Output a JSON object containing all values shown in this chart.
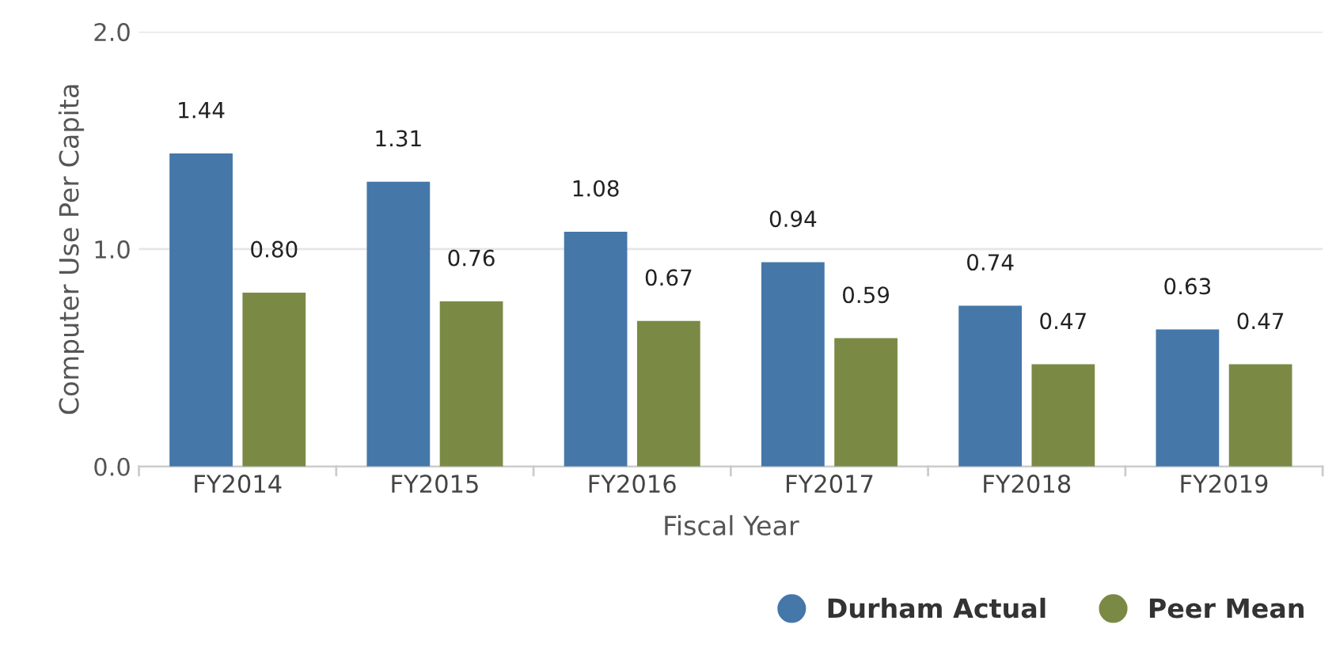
{
  "chart_data": {
    "type": "bar",
    "xlabel": "Fiscal Year",
    "ylabel": "Computer Use Per Capita",
    "categories": [
      "FY2014",
      "FY2015",
      "FY2016",
      "FY2017",
      "FY2018",
      "FY2019"
    ],
    "series": [
      {
        "name": "Durham Actual",
        "color": "#4577a9",
        "values": [
          1.44,
          1.31,
          1.08,
          0.94,
          0.74,
          0.63
        ],
        "value_labels": [
          "1.44",
          "1.31",
          "1.08",
          "0.94",
          "0.74",
          "0.63"
        ]
      },
      {
        "name": "Peer Mean",
        "color": "#7a8a45",
        "values": [
          0.8,
          0.76,
          0.67,
          0.59,
          0.47,
          0.47
        ],
        "value_labels": [
          "0.80",
          "0.76",
          "0.67",
          "0.59",
          "0.47",
          "0.47"
        ]
      }
    ],
    "ylim": [
      0,
      2.0
    ],
    "yticks": [
      {
        "value": 0,
        "label": "0.0"
      },
      {
        "value": 1,
        "label": "1.0"
      },
      {
        "value": 2,
        "label": "2.0"
      }
    ],
    "grid": "y",
    "legend": "bottom right"
  }
}
